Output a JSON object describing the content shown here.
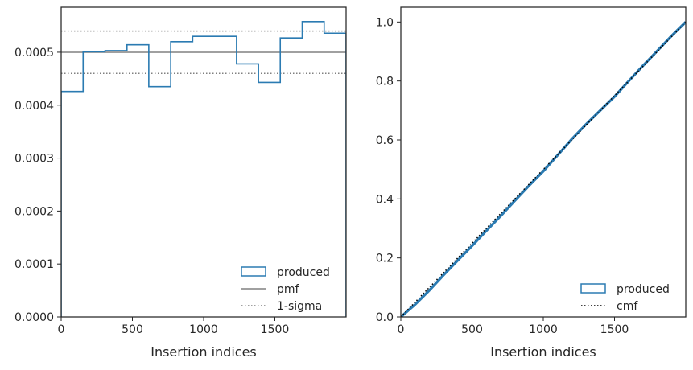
{
  "chart_data": [
    {
      "type": "line",
      "subtype": "step-histogram",
      "xlabel": "Insertion indices",
      "ylabel": "",
      "xlim": [
        0,
        2000
      ],
      "ylim": [
        0,
        0.000585
      ],
      "xticks": [
        0,
        500,
        1000,
        1500
      ],
      "xtick_labels": [
        "0",
        "500",
        "1000",
        "1500"
      ],
      "yticks": [
        0,
        0.0001,
        0.0002,
        0.0003,
        0.0004,
        0.0005
      ],
      "ytick_labels": [
        "0.0000",
        "0.0001",
        "0.0002",
        "0.0003",
        "0.0004",
        "0.0005"
      ],
      "bin_edges": [
        0,
        154,
        308,
        462,
        615,
        769,
        923,
        1077,
        1231,
        1385,
        1538,
        1692,
        1846,
        2000
      ],
      "series": [
        {
          "name": "produced",
          "style": "step",
          "color": "#2b7bb2",
          "values": [
            0.000426,
            0.000501,
            0.000503,
            0.000514,
            0.000435,
            0.00052,
            0.00053,
            0.00053,
            0.000478,
            0.000443,
            0.000527,
            0.000558,
            0.000536
          ]
        },
        {
          "name": "pmf",
          "style": "hline",
          "color": "#808080",
          "y": 0.0005
        },
        {
          "name": "1-sigma",
          "style": "dotted-hline",
          "color": "#808080",
          "y_values": [
            0.00046,
            0.00054
          ]
        }
      ],
      "legend": {
        "placement": "lower-right",
        "entries": [
          "produced",
          "pmf",
          "1-sigma"
        ]
      }
    },
    {
      "type": "line",
      "subtype": "cumulative-step",
      "xlabel": "Insertion indices",
      "ylabel": "",
      "xlim": [
        0,
        2000
      ],
      "ylim": [
        0,
        1.05
      ],
      "xticks": [
        0,
        500,
        1000,
        1500
      ],
      "xtick_labels": [
        "0",
        "500",
        "1000",
        "1500"
      ],
      "yticks": [
        0,
        0.2,
        0.4,
        0.6,
        0.8,
        1.0
      ],
      "ytick_labels": [
        "0.0",
        "0.2",
        "0.4",
        "0.6",
        "0.8",
        "1.0"
      ],
      "series": [
        {
          "name": "produced",
          "style": "step",
          "color": "#2b7bb2",
          "x": [
            0,
            100,
            200,
            300,
            400,
            500,
            600,
            700,
            800,
            900,
            1000,
            1100,
            1200,
            1300,
            1400,
            1500,
            1600,
            1700,
            1800,
            1900,
            2000
          ],
          "values": [
            0.0,
            0.042,
            0.09,
            0.142,
            0.192,
            0.241,
            0.292,
            0.342,
            0.394,
            0.445,
            0.494,
            0.548,
            0.603,
            0.653,
            0.7,
            0.747,
            0.8,
            0.852,
            0.902,
            0.953,
            1.0
          ]
        },
        {
          "name": "cmf",
          "style": "dotted-line",
          "color": "#000000",
          "x": [
            0,
            2000
          ],
          "values": [
            0.0,
            1.0
          ]
        }
      ],
      "legend": {
        "placement": "lower-right",
        "entries": [
          "produced",
          "cmf"
        ]
      }
    }
  ]
}
